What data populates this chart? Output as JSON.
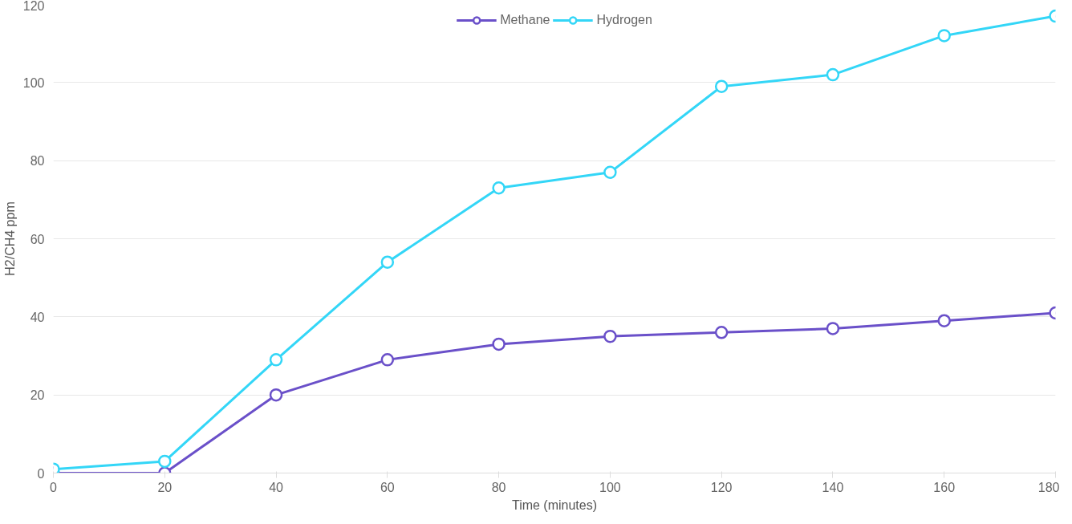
{
  "chart_data": {
    "type": "line",
    "xlabel": "Time (minutes)",
    "ylabel": "H2/CH4 ppm",
    "x": [
      0,
      20,
      40,
      60,
      80,
      100,
      120,
      140,
      160,
      180
    ],
    "series": [
      {
        "name": "Methane",
        "color": "#6a50c9",
        "values": [
          0,
          0,
          20,
          29,
          33,
          35,
          36,
          37,
          39,
          41
        ]
      },
      {
        "name": "Hydrogen",
        "color": "#33d6f7",
        "values": [
          1,
          3,
          29,
          54,
          73,
          77,
          99,
          102,
          112,
          117
        ]
      }
    ],
    "xlim": [
      0,
      180
    ],
    "xticks": [
      0,
      20,
      40,
      60,
      80,
      100,
      120,
      140,
      160,
      180
    ],
    "ylim": [
      0,
      120
    ],
    "yticks": [
      0,
      20,
      40,
      60,
      80,
      100,
      120
    ],
    "grid": "y",
    "legend": "top",
    "marker": "circle",
    "line_style": "solid"
  }
}
